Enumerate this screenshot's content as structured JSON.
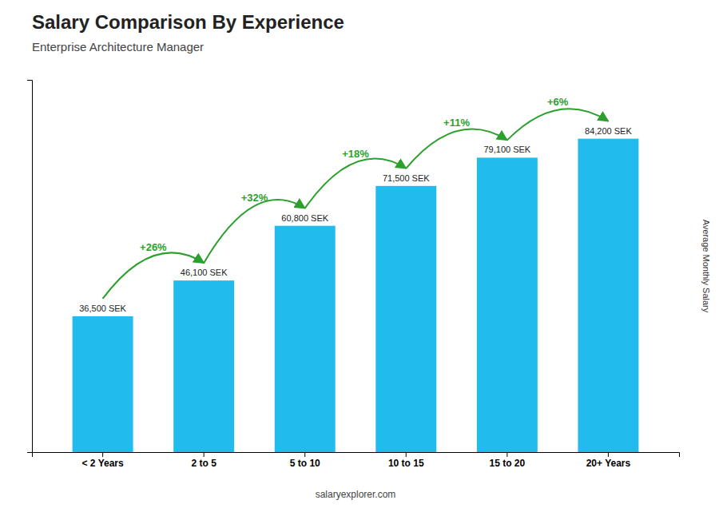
{
  "chart_data": {
    "type": "bar",
    "title": "Salary Comparison By Experience",
    "subtitle": "Enterprise Architecture Manager",
    "ylabel": "Average Monthly Salary",
    "footer": "salaryexplorer.com",
    "categories": [
      "< 2 Years",
      "2 to 5",
      "5 to 10",
      "10 to 15",
      "15 to 20",
      "20+ Years"
    ],
    "values": [
      36500,
      46100,
      60800,
      71500,
      79100,
      84200
    ],
    "value_labels": [
      "36,500 SEK",
      "46,100 SEK",
      "60,800 SEK",
      "71,500 SEK",
      "79,100 SEK",
      "84,200 SEK"
    ],
    "data_labels": true,
    "annotations": [
      "+26%",
      "+32%",
      "+18%",
      "+11%",
      "+6%"
    ],
    "color": "#22bbee",
    "ylim": [
      0,
      100000
    ],
    "yticks": [],
    "grid": false,
    "tick_labels": "x"
  }
}
